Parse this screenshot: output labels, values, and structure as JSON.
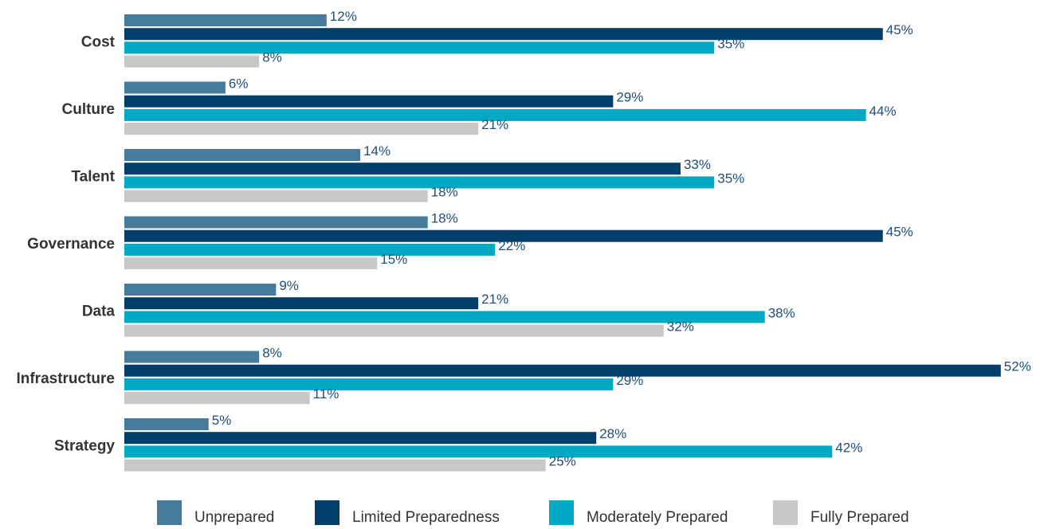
{
  "chart_data": {
    "type": "bar",
    "orientation": "horizontal",
    "categories": [
      "Cost",
      "Culture",
      "Talent",
      "Governance",
      "Data",
      "Infrastructure",
      "Strategy"
    ],
    "series": [
      {
        "name": "Unprepared",
        "color": "#467b9b",
        "values": [
          12,
          6,
          14,
          18,
          9,
          8,
          5
        ]
      },
      {
        "name": "Limited Preparedness",
        "color": "#003f6a",
        "values": [
          45,
          29,
          33,
          45,
          21,
          52,
          28
        ]
      },
      {
        "name": "Moderately Prepared",
        "color": "#00a9c4",
        "values": [
          35,
          44,
          35,
          22,
          38,
          29,
          42
        ]
      },
      {
        "name": "Fully Prepared",
        "color": "#c8c8c8",
        "values": [
          8,
          21,
          18,
          15,
          32,
          11,
          25
        ]
      }
    ],
    "value_suffix": "%",
    "xlim": [
      0,
      52
    ],
    "grid": false,
    "legend_position": "bottom",
    "title": "",
    "xlabel": "",
    "ylabel": ""
  }
}
